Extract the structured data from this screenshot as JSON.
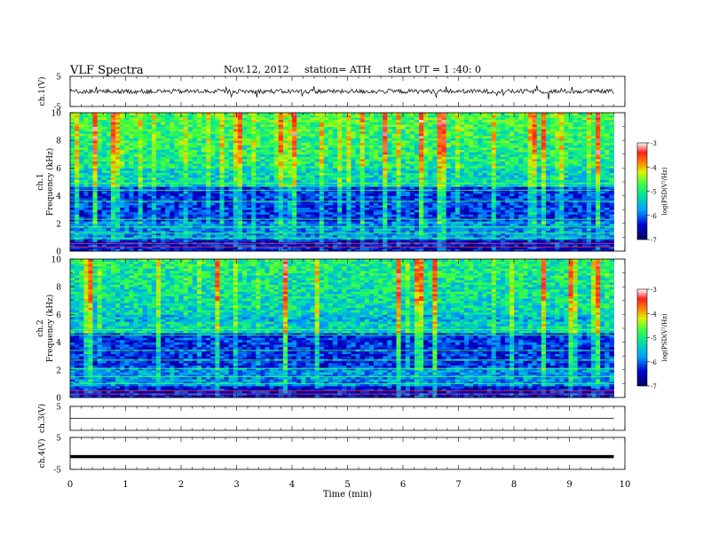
{
  "header": {
    "title": "VLF  Spectra",
    "date": "Nov.12, 2012",
    "station": "station= ATH",
    "start": "start  UT =   1 :40: 0"
  },
  "chart_data": [
    {
      "type": "line",
      "title": "",
      "ylabel": "ch.1(V)",
      "ylim": [
        -5,
        5
      ],
      "yticks": [
        "5",
        "-5"
      ],
      "xlim": [
        0,
        10
      ],
      "description_level": {
        "mean": 0.0,
        "noise_amplitude": 1.5,
        "xmax": 9.8
      }
    },
    {
      "type": "heatmap",
      "ylabel_channel": "ch.1",
      "ylabel": "Frequency  (kHz)",
      "ylim": [
        0,
        10
      ],
      "yticks": [
        "0",
        "2",
        "4",
        "6",
        "8",
        "10"
      ],
      "xlim": [
        0,
        10
      ],
      "xmax_data": 9.8,
      "colorbar": {
        "label": "log(PSD(V²/Hz)",
        "range": [
          -7,
          -3
        ],
        "ticks": [
          "-3",
          "-4",
          "-5",
          "-6",
          "-7"
        ]
      }
    },
    {
      "type": "heatmap",
      "ylabel_channel": "ch.2",
      "ylabel": "Frequency  (kHz)",
      "ylim": [
        0,
        10
      ],
      "yticks": [
        "0",
        "2",
        "4",
        "6",
        "8",
        "10"
      ],
      "xlim": [
        0,
        10
      ],
      "xmax_data": 9.8,
      "colorbar": {
        "label": "log(PSD(V²/Hz)",
        "range": [
          -7,
          -3
        ],
        "ticks": [
          "-3",
          "-4",
          "-5",
          "-6",
          "-7"
        ]
      }
    },
    {
      "type": "line",
      "ylabel": "ch.3(V)",
      "ylim": [
        -5,
        5
      ],
      "yticks": [
        "5"
      ],
      "xlim": [
        0,
        10
      ],
      "level": 0
    },
    {
      "type": "line",
      "ylabel": "ch.4(V)",
      "ylim": [
        -5,
        5
      ],
      "yticks": [
        "5",
        "-5"
      ],
      "xlim": [
        0,
        10
      ],
      "level": -1
    }
  ],
  "xaxis": {
    "label": "Time  (min)",
    "ticks": [
      "0",
      "1",
      "2",
      "3",
      "4",
      "5",
      "6",
      "7",
      "8",
      "9",
      "10"
    ]
  }
}
